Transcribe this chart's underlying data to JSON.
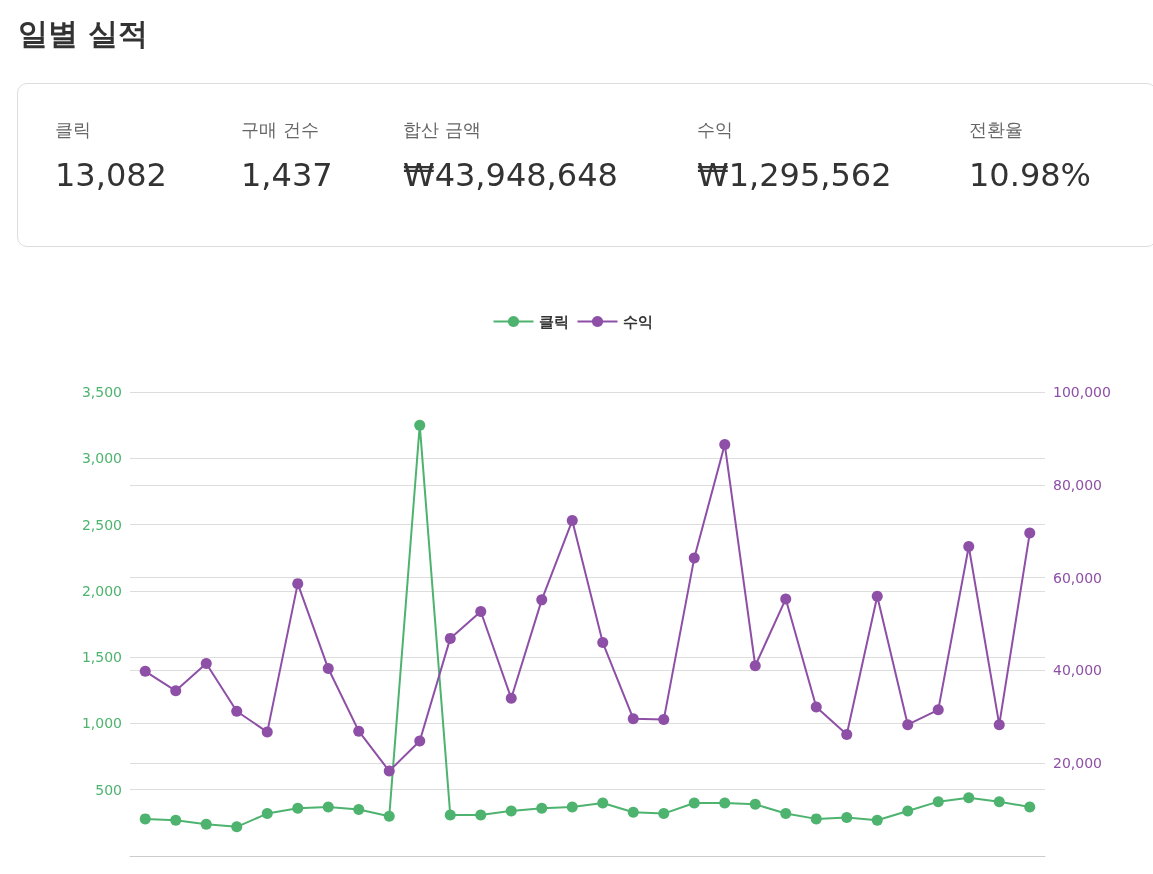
{
  "chart_data": [
    {
      "type": "other",
      "title": "일별 실적",
      "categories": [
        "클릭",
        "구매 건수",
        "합산 금액",
        "수익",
        "전환율"
      ],
      "value_labels": [
        "13,082",
        "1,437",
        "₩43,948,648",
        "₩1,295,562",
        "10.98%"
      ]
    },
    {
      "type": "line",
      "categories": [
        null,
        null,
        null,
        null,
        null,
        null,
        null,
        null,
        null,
        null,
        null,
        null,
        null,
        null,
        null,
        null,
        null,
        null,
        null,
        null,
        null,
        null,
        null,
        null,
        null,
        null,
        null,
        null,
        null,
        null
      ],
      "series": [
        {
          "name": "클릭",
          "color": "#4db36f",
          "values": [
            280,
            270,
            240,
            220,
            320,
            360,
            370,
            350,
            300,
            3250,
            310,
            310,
            340,
            360,
            370,
            400,
            330,
            320,
            400,
            400,
            390,
            320,
            280,
            290,
            270,
            340,
            410,
            440,
            410,
            370
          ]
        },
        {
          "name": "수익",
          "color": "#8e4fa6",
          "axis": "y2",
          "values": [
            39800,
            35600,
            41500,
            31200,
            26700,
            58700,
            40400,
            26900,
            18300,
            24800,
            46900,
            52700,
            34000,
            55200,
            72300,
            46000,
            29600,
            29400,
            64200,
            88700,
            41000,
            55400,
            32100,
            26200,
            56000,
            28300,
            31500,
            66700,
            28300,
            69600
          ]
        }
      ],
      "ylim": [
        0,
        3500
      ],
      "yticks": [
        500,
        {
          "value": 1000,
          "label": "1,000"
        },
        {
          "value": 1500,
          "label": "1,500"
        },
        {
          "value": 2000,
          "label": "2,000"
        },
        {
          "value": 2500,
          "label": "2,500"
        },
        {
          "value": 3000,
          "label": "3,000"
        },
        {
          "value": 3500,
          "label": "3,500"
        }
      ],
      "y2lim": [
        0,
        100000
      ],
      "y2ticks": [
        {
          "value": 20000,
          "label": "20,000"
        },
        {
          "value": 40000,
          "label": "40,000"
        },
        {
          "value": 60000,
          "label": "60,000"
        },
        {
          "value": 80000,
          "label": "80,000"
        },
        {
          "value": 100000,
          "label": "100,000"
        }
      ],
      "grid": "y",
      "legend": "top",
      "marker": "circle",
      "line_style": "solid",
      "tick_labels": "y"
    }
  ]
}
